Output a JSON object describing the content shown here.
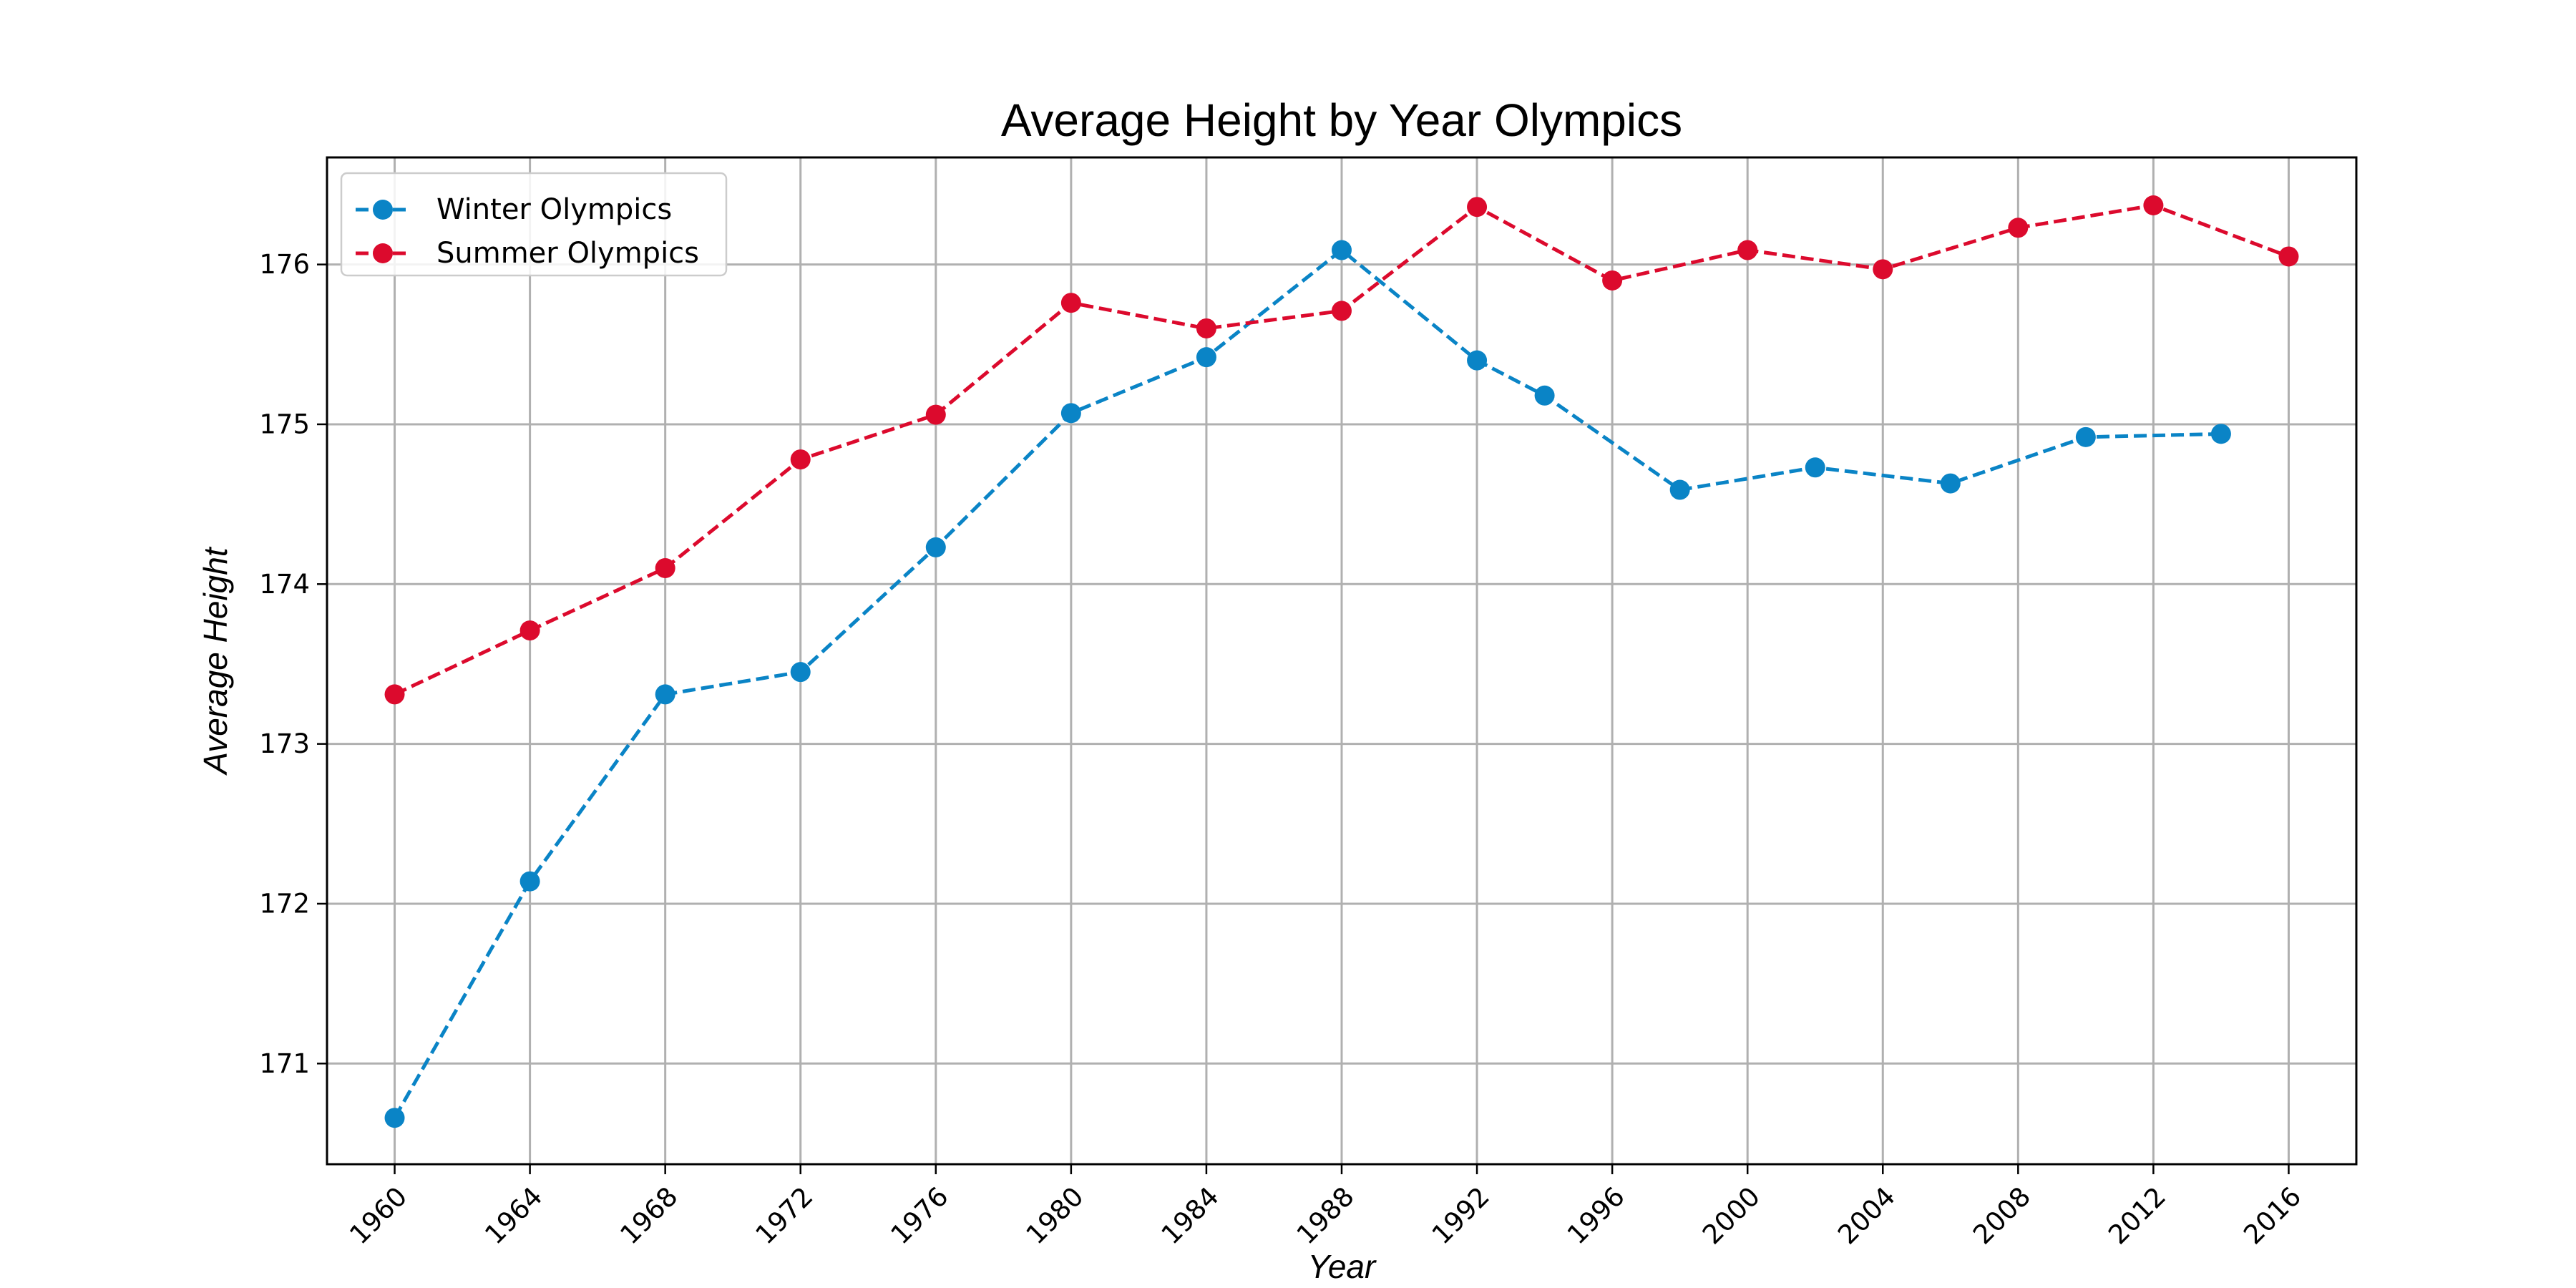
{
  "chart_data": {
    "type": "line",
    "title": "Average Height by Year Olympics",
    "xlabel": "Year",
    "ylabel": "Average Height",
    "xlim": [
      1958,
      2018
    ],
    "ylim": [
      170.37,
      176.67
    ],
    "x_ticks": [
      1960,
      1964,
      1968,
      1972,
      1976,
      1980,
      1984,
      1988,
      1992,
      1996,
      2000,
      2004,
      2008,
      2012,
      2016
    ],
    "y_ticks": [
      171,
      172,
      173,
      174,
      175,
      176
    ],
    "grid": true,
    "legend_position": "upper-left",
    "series": [
      {
        "name": "Winter Olympics",
        "color": "#0a84c6",
        "linestyle": "dashed",
        "marker": "circle",
        "x": [
          1960,
          1964,
          1968,
          1972,
          1976,
          1980,
          1984,
          1988,
          1992,
          1994,
          1998,
          2002,
          2006,
          2010,
          2014
        ],
        "y": [
          170.66,
          172.14,
          173.31,
          173.45,
          174.23,
          175.07,
          175.42,
          176.09,
          175.4,
          175.18,
          174.59,
          174.73,
          174.63,
          174.92,
          174.94
        ]
      },
      {
        "name": "Summer Olympics",
        "color": "#dc0a2d",
        "linestyle": "dashed",
        "marker": "circle",
        "x": [
          1960,
          1964,
          1968,
          1972,
          1976,
          1980,
          1984,
          1988,
          1992,
          1996,
          2000,
          2004,
          2008,
          2012,
          2016
        ],
        "y": [
          173.31,
          173.71,
          174.1,
          174.78,
          175.06,
          175.76,
          175.6,
          175.71,
          176.36,
          175.9,
          176.09,
          175.97,
          176.23,
          176.37,
          176.05
        ]
      }
    ]
  }
}
